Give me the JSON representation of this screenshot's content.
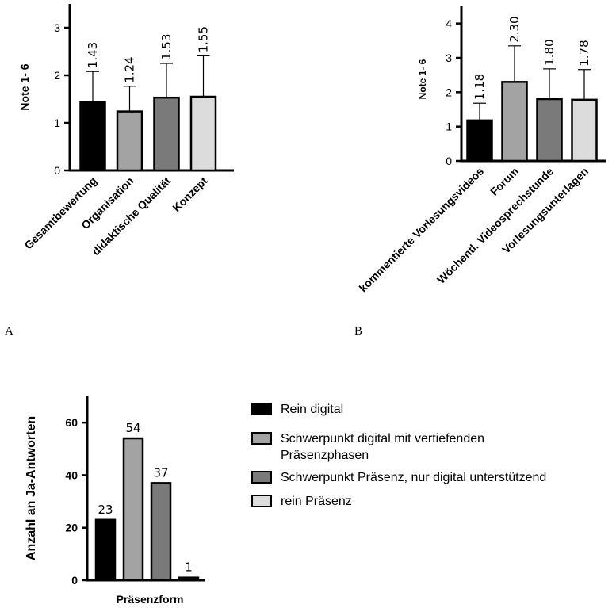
{
  "colors": {
    "black": "#000000",
    "dark_gray": "#7a7a7a",
    "mid_gray": "#a3a3a3",
    "light_gray": "#dcdcdc"
  },
  "panel_labels": {
    "A": "A",
    "B": "B"
  },
  "chart_data": [
    {
      "type": "bar",
      "panel": "A",
      "ylabel": "Note 1- 6",
      "ylim": [
        0,
        3.5
      ],
      "yticks": [
        0,
        1,
        2,
        3
      ],
      "ytick_labels": [
        "0",
        "1",
        "2",
        "3"
      ],
      "categories": [
        "Gesamtbewertung",
        "Organisation",
        "didaktische Qualität",
        "Konzept"
      ],
      "values": [
        1.43,
        1.24,
        1.53,
        1.55
      ],
      "value_labels": [
        "1.43",
        "1.24",
        "1.53",
        "1.55"
      ],
      "error_upper": [
        2.08,
        1.77,
        2.25,
        2.41
      ],
      "bar_colors": [
        "#000000",
        "#a3a3a3",
        "#7a7a7a",
        "#dcdcdc"
      ],
      "grid": false
    },
    {
      "type": "bar",
      "panel": "B",
      "ylabel": "Note 1- 6",
      "ylim": [
        0,
        4.5
      ],
      "yticks": [
        0,
        1,
        2,
        3,
        4
      ],
      "ytick_labels": [
        "0",
        "1",
        "2",
        "3",
        "4"
      ],
      "categories": [
        "kommentierte Vorlesungsvideos",
        "Forum",
        "Wöchentl. Videosprechstunde",
        "Vorlesungsunterlagen"
      ],
      "values": [
        1.18,
        2.3,
        1.8,
        1.78
      ],
      "value_labels": [
        "1.18",
        "2.30",
        "1.80",
        "1.78"
      ],
      "error_upper": [
        1.68,
        3.35,
        2.68,
        2.66
      ],
      "bar_colors": [
        "#000000",
        "#a3a3a3",
        "#7a7a7a",
        "#dcdcdc"
      ],
      "grid": false
    },
    {
      "type": "bar",
      "panel": "C",
      "ylabel": "Anzahl an Ja-Antworten",
      "xlabel": "Präsenzform",
      "ylim": [
        0,
        70
      ],
      "yticks": [
        0,
        20,
        40,
        60
      ],
      "ytick_labels": [
        "0",
        "20",
        "40",
        "60"
      ],
      "series": [
        {
          "name": "Rein digital",
          "values": [
            23
          ],
          "color": "#000000"
        },
        {
          "name": "Schwerpunkt digital mit vertiefenden Präsenzphasen",
          "values": [
            54
          ],
          "color": "#a3a3a3"
        },
        {
          "name": "Schwerpunkt Präsenz, nur digital unterstützend",
          "values": [
            37
          ],
          "color": "#7a7a7a"
        },
        {
          "name": "rein Präsenz",
          "values": [
            1
          ],
          "color": "#dcdcdc"
        }
      ],
      "value_labels": [
        "23",
        "54",
        "37",
        "1"
      ],
      "legend": {
        "placement": "right",
        "entries": [
          {
            "lines": [
              "Rein digital"
            ],
            "color": "#000000"
          },
          {
            "lines": [
              "Schwerpunkt digital mit vertiefenden",
              "Präsenzphasen"
            ],
            "color": "#a3a3a3"
          },
          {
            "lines": [
              "Schwerpunkt Präsenz, nur digital unterstützend"
            ],
            "color": "#7a7a7a"
          },
          {
            "lines": [
              "rein Präsenz"
            ],
            "color": "#dcdcdc"
          }
        ]
      },
      "grid": false
    }
  ]
}
